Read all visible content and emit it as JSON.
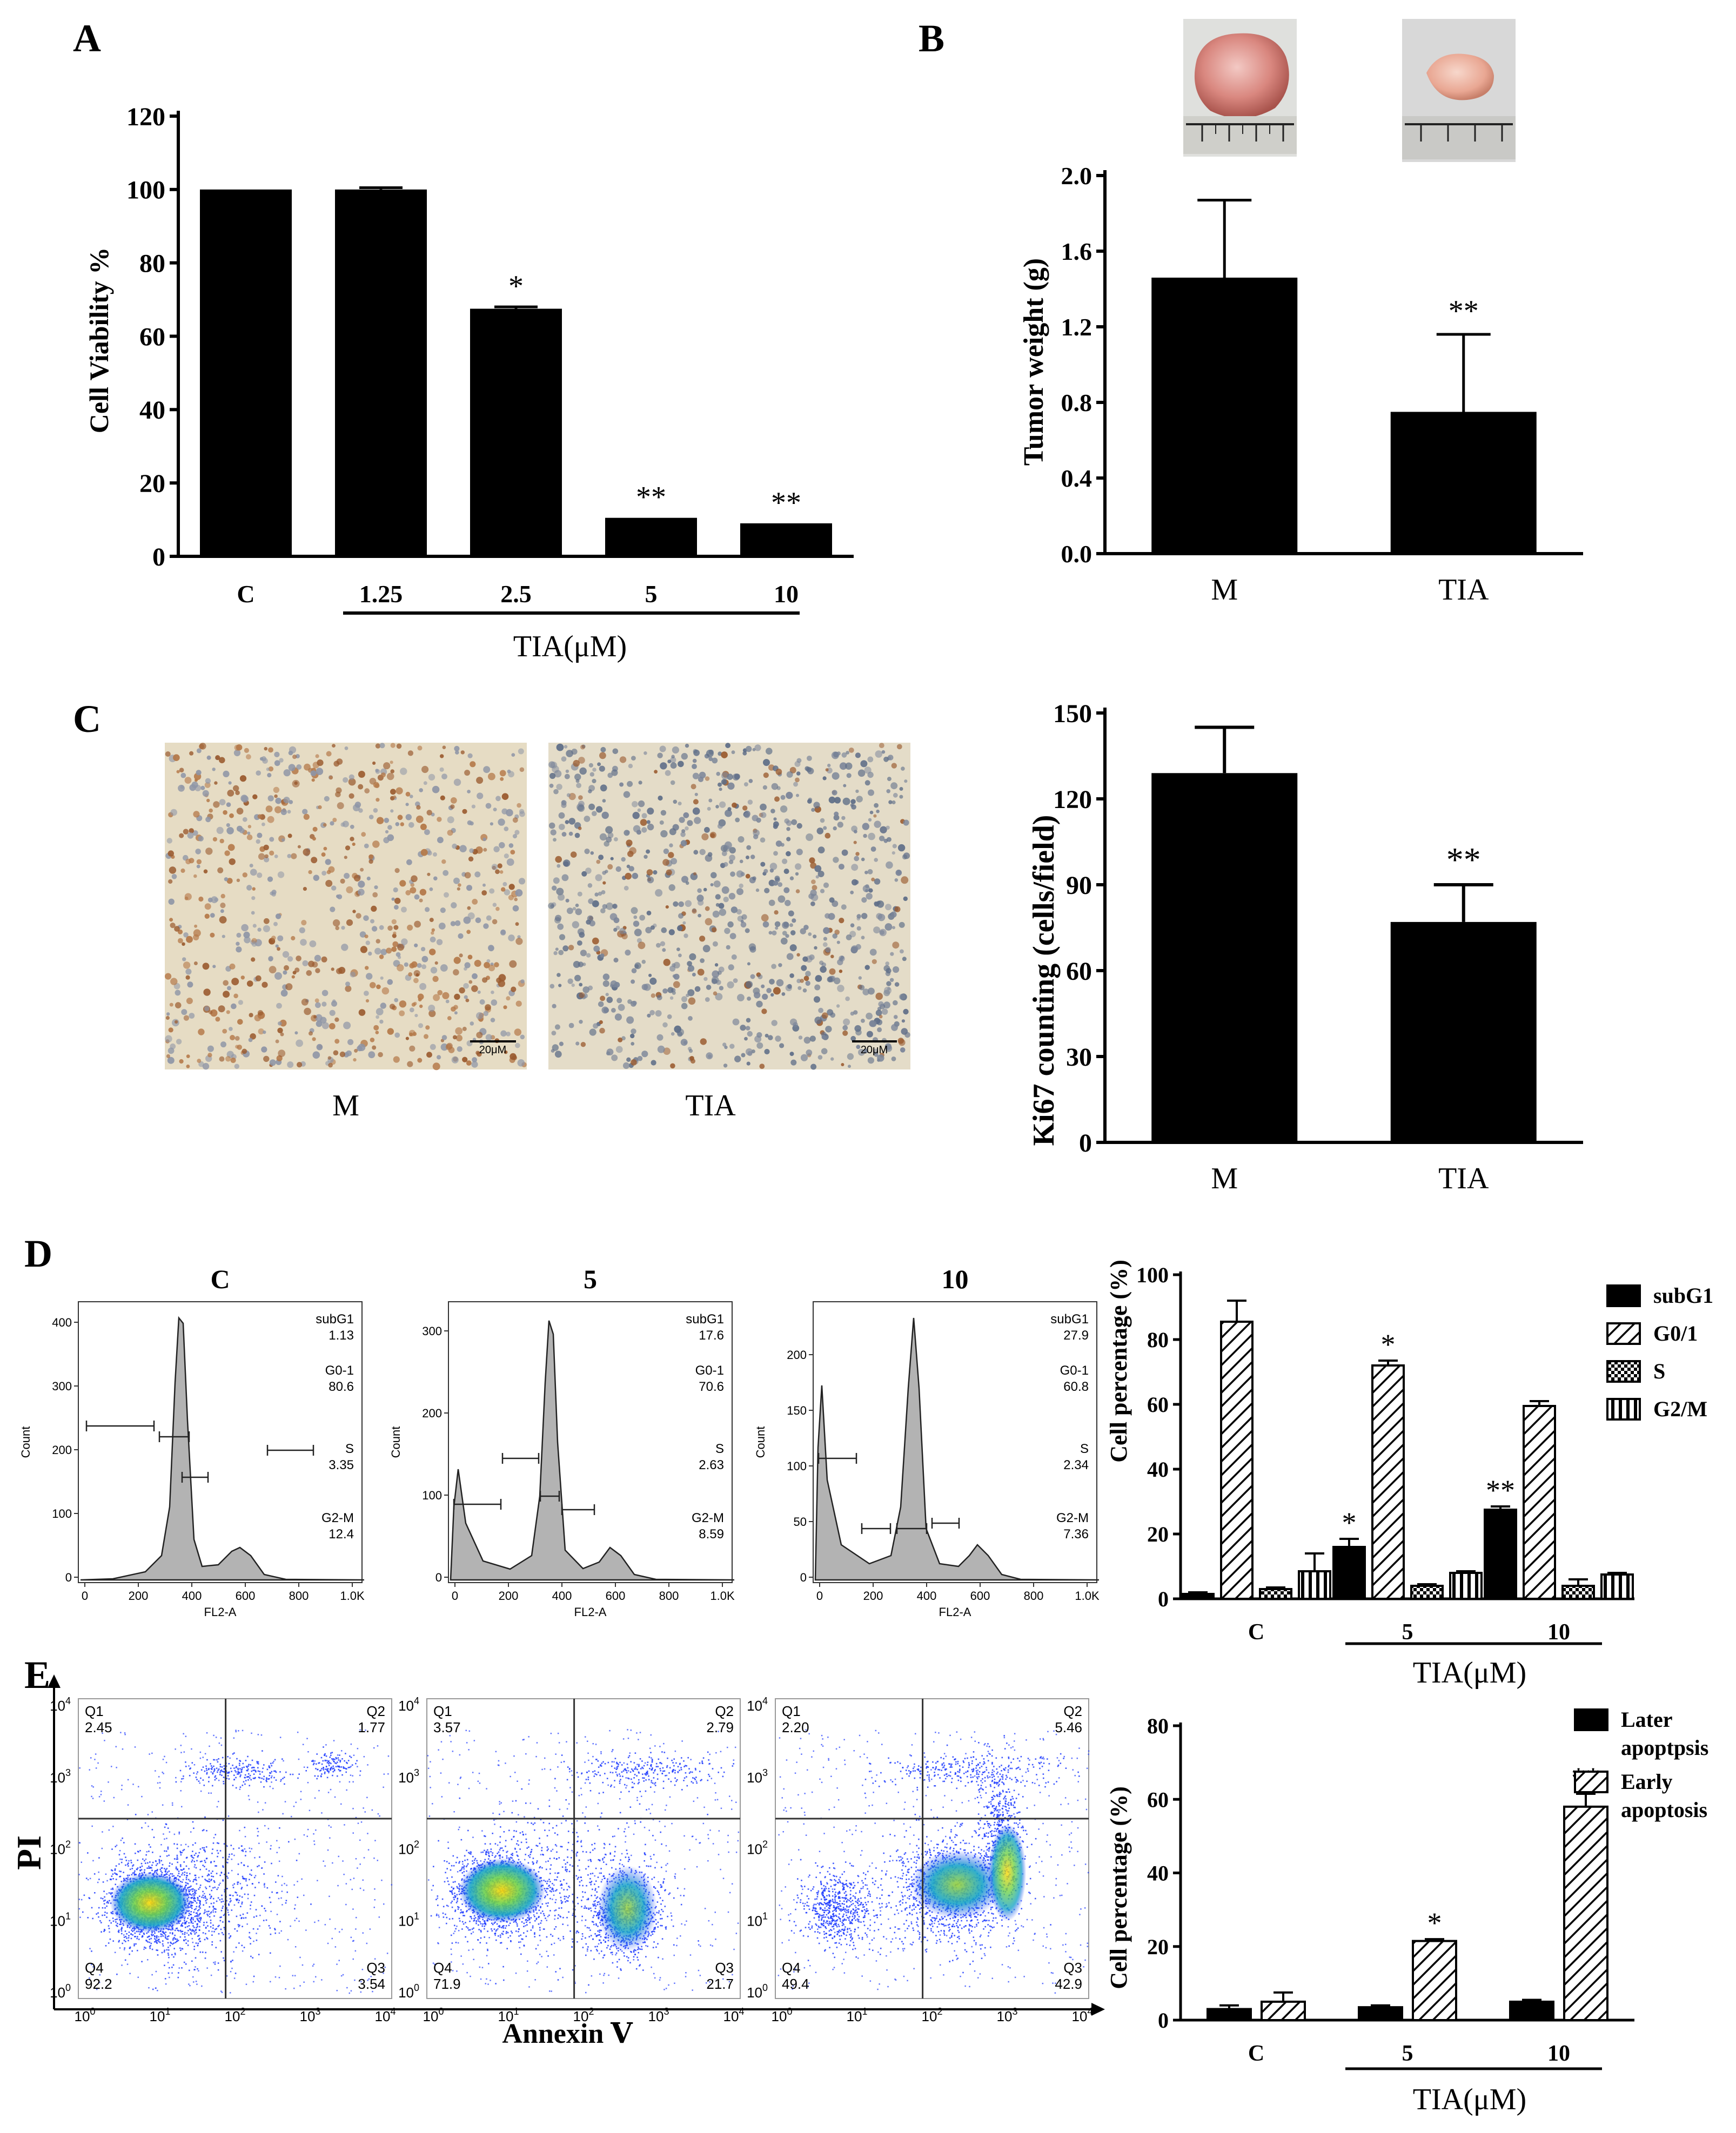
{
  "panel_letters": [
    "A",
    "B",
    "C",
    "D",
    "E"
  ],
  "colors": {
    "bar": "#000000",
    "histogram_fill": "#b3b3b3",
    "flow_dots": "#1f3cff",
    "flow_hot": "#ffd800"
  },
  "panel_a": {
    "ylabel": "Cell Viability %",
    "group_label": "TIA(μM)"
  },
  "panel_b": {
    "ylabel": "Tumor weight (g)"
  },
  "panel_c": {
    "ylabel": "Ki67 counting (cells/field)",
    "image_labels": [
      "M",
      "TIA"
    ],
    "scale_bar_label": "20μM"
  },
  "panel_d": {
    "titles": [
      "C",
      "5",
      "10"
    ],
    "hist_xlabel": "FL2-A",
    "hist_ylabel": "Count",
    "stats": [
      [
        "subG1",
        "1.13",
        "G0-1",
        "80.6",
        "S",
        "3.35",
        "G2-M",
        "12.4"
      ],
      [
        "subG1",
        "17.6",
        "G0-1",
        "70.6",
        "S",
        "2.63",
        "G2-M",
        "8.59"
      ],
      [
        "subG1",
        "27.9",
        "G0-1",
        "60.8",
        "S",
        "2.34",
        "G2-M",
        "7.36"
      ]
    ],
    "hist_xticks": [
      "0",
      "200",
      "400",
      "600",
      "800",
      "1.0K"
    ],
    "hist_yticks": [
      [
        "0",
        "100",
        "200",
        "300",
        "400"
      ],
      [
        "0",
        "100",
        "200",
        "300"
      ],
      [
        "0",
        "50",
        "100",
        "150",
        "200"
      ]
    ],
    "bar_ylabel": "Cell percentage (%)",
    "group_label": "TIA(μM)"
  },
  "panel_e": {
    "xlabel": "Annexin Ⅴ",
    "ylabel": "PI",
    "flow_ticks": [
      "10",
      "10",
      "10",
      "10",
      "10"
    ],
    "flow_tick_exps": [
      "0",
      "1",
      "2",
      "3",
      "4"
    ],
    "quadrants": [
      {
        "q1": "Q1",
        "q1v": "2.45",
        "q2": "Q2",
        "q2v": "1.77",
        "q3": "Q3",
        "q3v": "3.54",
        "q4": "Q4",
        "q4v": "92.2"
      },
      {
        "q1": "Q1",
        "q1v": "3.57",
        "q2": "Q2",
        "q2v": "2.79",
        "q3": "Q3",
        "q3v": "21.7",
        "q4": "Q4",
        "q4v": "71.9"
      },
      {
        "q1": "Q1",
        "q1v": "2.20",
        "q2": "Q2",
        "q2v": "5.46",
        "q3": "Q3",
        "q3v": "42.9",
        "q4": "Q4",
        "q4v": "49.4"
      }
    ],
    "bar_ylabel": "Cell percentage (%)",
    "group_label": "TIA(μM)"
  },
  "chart_data": [
    {
      "type": "bar",
      "panel": "A",
      "categories": [
        "C",
        "1.25",
        "2.5",
        "5",
        "10"
      ],
      "values": [
        100,
        100,
        67.5,
        10.5,
        9
      ],
      "errors": [
        0,
        0.5,
        0.5,
        0,
        0
      ],
      "significance": [
        "",
        "",
        "*",
        "**",
        "**"
      ],
      "ylabel": "Cell Viability %",
      "ylim": [
        0,
        120
      ],
      "yticks": [
        "0",
        "20",
        "40",
        "60",
        "80",
        "100",
        "120"
      ]
    },
    {
      "type": "bar",
      "panel": "B",
      "categories": [
        "M",
        "TIA"
      ],
      "values": [
        1.46,
        0.75
      ],
      "errors": [
        0.41,
        0.41
      ],
      "significance": [
        "",
        "**"
      ],
      "ylabel": "Tumor weight (g)",
      "ylim": [
        0,
        2.0
      ],
      "yticks": [
        "0.0",
        "0.4",
        "0.8",
        "1.2",
        "1.6",
        "2.0"
      ]
    },
    {
      "type": "bar",
      "panel": "C",
      "categories": [
        "M",
        "TIA"
      ],
      "values": [
        129,
        77
      ],
      "errors": [
        16,
        13
      ],
      "significance": [
        "",
        "**"
      ],
      "ylabel": "Ki67 counting (cells/field)",
      "ylim": [
        0,
        150
      ],
      "yticks": [
        "0",
        "30",
        "60",
        "90",
        "120",
        "150"
      ]
    },
    {
      "type": "bar",
      "panel": "D",
      "categories": [
        "C",
        "5",
        "10"
      ],
      "series": [
        {
          "name": "subG1",
          "values": [
            1.5,
            16,
            27.5
          ],
          "errors": [
            0.5,
            2.5,
            1.0
          ]
        },
        {
          "name": "G0/1",
          "values": [
            85.5,
            72,
            59.5
          ],
          "errors": [
            6.5,
            1.5,
            1.5
          ]
        },
        {
          "name": "S",
          "values": [
            3,
            4,
            4
          ],
          "errors": [
            0.5,
            0.5,
            2.0
          ]
        },
        {
          "name": "G2/M",
          "values": [
            8.5,
            8,
            7.5
          ],
          "errors": [
            5.5,
            0.5,
            0.5
          ]
        }
      ],
      "significance": [
        [
          "",
          "",
          "",
          ""
        ],
        [
          "*",
          "*",
          "",
          ""
        ],
        [
          "**",
          "",
          "",
          ""
        ]
      ],
      "ylabel": "Cell percentage (%)",
      "ylim": [
        0,
        100
      ],
      "yticks": [
        "0",
        "20",
        "40",
        "60",
        "80",
        "100"
      ],
      "legend": "top-right"
    },
    {
      "type": "bar",
      "panel": "E",
      "categories": [
        "C",
        "5",
        "10"
      ],
      "series": [
        {
          "name": "Later apoptpsis",
          "values": [
            3,
            3.5,
            5
          ],
          "errors": [
            1,
            0.5,
            0.5
          ]
        },
        {
          "name": "Early apoptosis",
          "values": [
            5,
            21.5,
            58
          ],
          "errors": [
            2.5,
            0.5,
            3.5
          ]
        }
      ],
      "significance": [
        [
          "",
          ""
        ],
        [
          "",
          "*"
        ],
        [
          "",
          "**"
        ]
      ],
      "ylabel": "Cell percentage (%)",
      "ylim": [
        0,
        80
      ],
      "yticks": [
        "0",
        "20",
        "40",
        "60",
        "80"
      ],
      "legend": "top-right"
    }
  ]
}
